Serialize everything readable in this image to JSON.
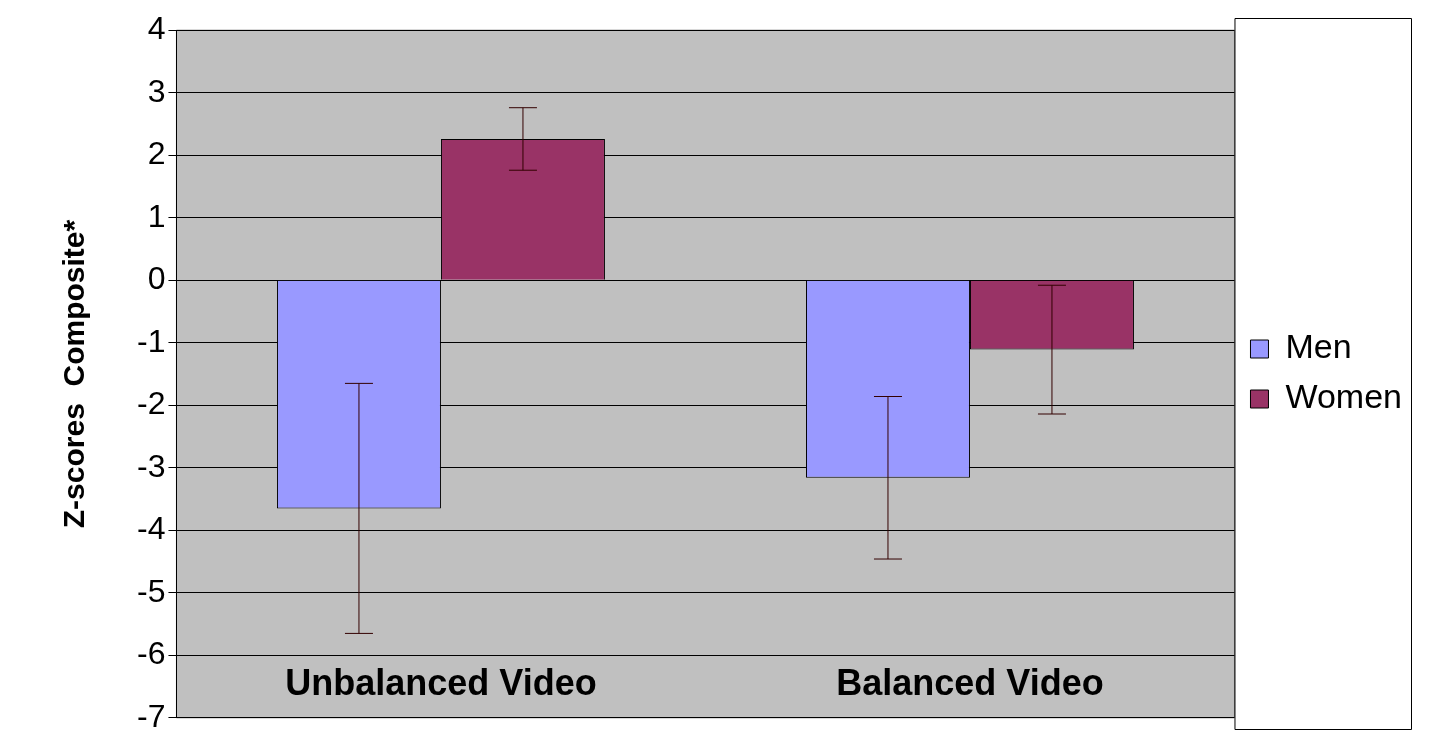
{
  "chart_data": {
    "type": "bar",
    "ylabel": "Z-scores  Composite*",
    "categories": [
      "Unbalanced Video",
      "Balanced Video"
    ],
    "series": [
      {
        "name": "Men",
        "color": "#9999ff",
        "values": [
          -3.65,
          -3.16
        ],
        "errors": [
          2.0,
          1.3
        ]
      },
      {
        "name": "Women",
        "color": "#993366",
        "values": [
          2.26,
          -1.11
        ],
        "errors": [
          0.5,
          1.03
        ]
      }
    ],
    "ylim": [
      -7,
      4
    ],
    "yticks": [
      -7,
      -6,
      -5,
      -4,
      -3,
      -2,
      -1,
      0,
      1,
      2,
      3,
      4
    ],
    "grid": "y",
    "legend": "right"
  }
}
